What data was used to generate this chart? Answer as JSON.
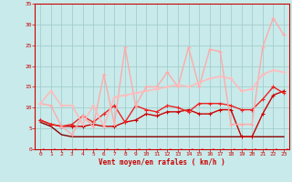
{
  "xlabel": "Vent moyen/en rafales ( km/h )",
  "xlim": [
    -0.5,
    23.5
  ],
  "ylim": [
    0,
    35
  ],
  "yticks": [
    0,
    5,
    10,
    15,
    20,
    25,
    30,
    35
  ],
  "xticks": [
    0,
    1,
    2,
    3,
    4,
    5,
    6,
    7,
    8,
    9,
    10,
    11,
    12,
    13,
    14,
    15,
    16,
    17,
    18,
    19,
    20,
    21,
    22,
    23
  ],
  "bg_color": "#c8eaea",
  "grid_color": "#9ec8c8",
  "text_color": "#cc0000",
  "series": [
    {
      "x": [
        0,
        1,
        2,
        3,
        4,
        5,
        6,
        7,
        8,
        9,
        10,
        11,
        12,
        13,
        14,
        15,
        16,
        17,
        18,
        19,
        20,
        21,
        22,
        23
      ],
      "y": [
        6.5,
        5.5,
        3.5,
        3.0,
        3.0,
        3.0,
        3.0,
        3.0,
        3.0,
        3.0,
        3.0,
        3.0,
        3.0,
        3.0,
        3.0,
        3.0,
        3.0,
        3.0,
        3.0,
        3.0,
        3.0,
        3.0,
        3.0,
        3.0
      ],
      "color": "#880000",
      "lw": 1.0,
      "marker": null,
      "ls": "-"
    },
    {
      "x": [
        0,
        1,
        2,
        3,
        4,
        5,
        6,
        7,
        8,
        9,
        10,
        11,
        12,
        13,
        14,
        15,
        16,
        17,
        18,
        19,
        20,
        21,
        22,
        23
      ],
      "y": [
        7.0,
        6.0,
        5.5,
        5.5,
        5.5,
        6.0,
        5.5,
        5.5,
        6.5,
        7.0,
        8.5,
        8.0,
        9.0,
        9.0,
        9.5,
        8.5,
        8.5,
        9.5,
        9.5,
        3.0,
        3.0,
        8.5,
        13.0,
        14.0
      ],
      "color": "#cc0000",
      "lw": 1.0,
      "marker": "+",
      "ms": 3.0,
      "ls": "-"
    },
    {
      "x": [
        0,
        1,
        2,
        3,
        4,
        5,
        6,
        7,
        8,
        9,
        10,
        11,
        12,
        13,
        14,
        15,
        16,
        17,
        18,
        19,
        20,
        21,
        22,
        23
      ],
      "y": [
        7.0,
        6.0,
        5.5,
        6.0,
        8.0,
        6.5,
        8.5,
        10.5,
        6.5,
        10.5,
        9.5,
        9.0,
        10.5,
        10.0,
        9.0,
        11.0,
        11.0,
        11.0,
        10.5,
        9.5,
        9.5,
        12.0,
        15.0,
        13.5
      ],
      "color": "#ee2222",
      "lw": 1.0,
      "marker": "+",
      "ms": 3.0,
      "ls": "-"
    },
    {
      "x": [
        0,
        1,
        2,
        3,
        4,
        5,
        6,
        7,
        8,
        9,
        10,
        11,
        12,
        13,
        14,
        15,
        16,
        17,
        18,
        19,
        20,
        21,
        22,
        23
      ],
      "y": [
        11.0,
        10.5,
        5.5,
        3.5,
        8.0,
        5.5,
        18.0,
        6.0,
        24.5,
        10.5,
        15.0,
        15.0,
        18.5,
        15.0,
        24.5,
        15.0,
        24.0,
        23.5,
        6.0,
        6.0,
        6.0,
        24.5,
        31.5,
        27.5
      ],
      "color": "#ffaaaa",
      "lw": 1.0,
      "marker": "+",
      "ms": 3.0,
      "ls": "-"
    },
    {
      "x": [
        0,
        1,
        2,
        3,
        4,
        5,
        6,
        7,
        8,
        9,
        10,
        11,
        12,
        13,
        14,
        15,
        16,
        17,
        18,
        19,
        20,
        21,
        22,
        23
      ],
      "y": [
        11.0,
        14.0,
        10.5,
        10.5,
        6.0,
        10.5,
        5.5,
        12.5,
        13.0,
        13.5,
        14.0,
        14.5,
        15.0,
        15.5,
        15.0,
        16.0,
        17.0,
        17.5,
        17.0,
        14.0,
        14.5,
        18.0,
        19.0,
        18.5
      ],
      "color": "#ffbbbb",
      "lw": 1.2,
      "marker": "+",
      "ms": 3.0,
      "ls": "-"
    },
    {
      "x": [
        0,
        1,
        2,
        3,
        4,
        5,
        6,
        7,
        8,
        9,
        10,
        11,
        12,
        13,
        14,
        15,
        16,
        17,
        18,
        19,
        20,
        21,
        22,
        23
      ],
      "y": [
        -0.3,
        -0.3,
        -0.3,
        -0.3,
        -0.3,
        -0.3,
        -0.3,
        -0.3,
        -0.3,
        -0.3,
        -0.3,
        -0.3,
        -0.3,
        -0.3,
        -0.3,
        -0.3,
        -0.3,
        -0.3,
        -0.3,
        -0.3,
        -0.3,
        -0.3,
        -0.3,
        -0.3
      ],
      "color": "#ff4444",
      "lw": 0.8,
      "marker": 4,
      "ms": 3.5,
      "ls": "--"
    }
  ]
}
